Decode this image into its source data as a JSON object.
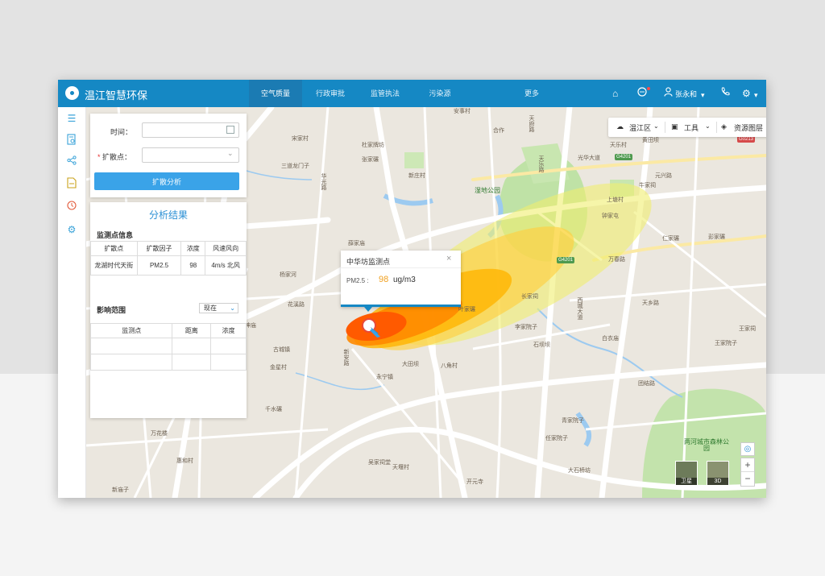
{
  "app": {
    "title": "温江智慧环保",
    "colors": {
      "primary": "#1588c4",
      "accent": "#3aa3e8",
      "plume_core": "#ff5a00",
      "plume_mid": "#ffb400",
      "plume_outer": "#f0ee70"
    }
  },
  "nav": {
    "items": [
      {
        "label": "空气质量",
        "active": true
      },
      {
        "label": "行政审批"
      },
      {
        "label": "监管执法"
      },
      {
        "label": "污染源"
      },
      {
        "label": "更多"
      }
    ]
  },
  "header": {
    "user_name": "张永和",
    "icons": [
      "home-icon",
      "message-icon",
      "user-icon",
      "phone-icon",
      "gear-icon"
    ]
  },
  "sidebar": {
    "icons": [
      "menu-icon",
      "document-search-icon",
      "share-icon",
      "file-icon",
      "clock-icon",
      "settings-icon"
    ]
  },
  "map_tools": {
    "district": "温江区",
    "tools": "工具",
    "layers": "资源图层"
  },
  "form": {
    "time_label": "时间：",
    "time_value": "",
    "source_label": "扩散点：",
    "source_value": "",
    "required_mark": "*",
    "analyze_button": "扩散分析"
  },
  "results": {
    "title": "分析结果",
    "station_section": "监测点信息",
    "station_headers": [
      "扩散点",
      "扩散因子",
      "浓度",
      "风速风向"
    ],
    "station_rows": [
      {
        "point": "龙湖时代天街",
        "factor": "PM2.5",
        "concentration": "98",
        "wind": "4m/s  北风"
      }
    ],
    "impact_section": "影响范围",
    "impact_select": "现在",
    "impact_headers": [
      "监测点",
      "距离",
      "浓度"
    ]
  },
  "popup": {
    "title": "中华坊监测点",
    "metric_label": "PM2.5 :",
    "metric_value": "98",
    "metric_unit": "ug/m3"
  },
  "map_controls": {
    "zoom_in": "+",
    "zoom_out": "−",
    "satellite": "卫星",
    "three_d": "3D"
  },
  "map_labels": {
    "park": "湿地公园",
    "forest_park": "两河城市森林公园",
    "road_g4201": "G4201",
    "road_g0213": "G0213",
    "places": [
      "安事村",
      "合作",
      "天府路",
      "天乐路",
      "光华大道",
      "杜家牌坊",
      "张家碾",
      "宋家村",
      "新庄村",
      "天乐村",
      "三道龙门子",
      "华光路",
      "黄田坝",
      "薛家庙",
      "杨家河",
      "花溪路",
      "古城镇",
      "王家院子",
      "火神庙",
      "新安路",
      "永宁镇",
      "八角村",
      "金星村",
      "大田坝",
      "千水碾",
      "万花楼",
      "惠和村",
      "新庙子",
      "吴家祠堂",
      "天堰村",
      "开元寺",
      "青家院子",
      "任家院子",
      "大石桥坊",
      "李家院子",
      "叶家碾",
      "长家祠",
      "石坝坝",
      "白衣庙",
      "团结路",
      "万春路",
      "西城大道",
      "天乡路",
      "牛家祠",
      "钟家屯",
      "仁家碾",
      "彭家碾",
      "王家祠",
      "上塘村",
      "元兴路"
    ]
  }
}
